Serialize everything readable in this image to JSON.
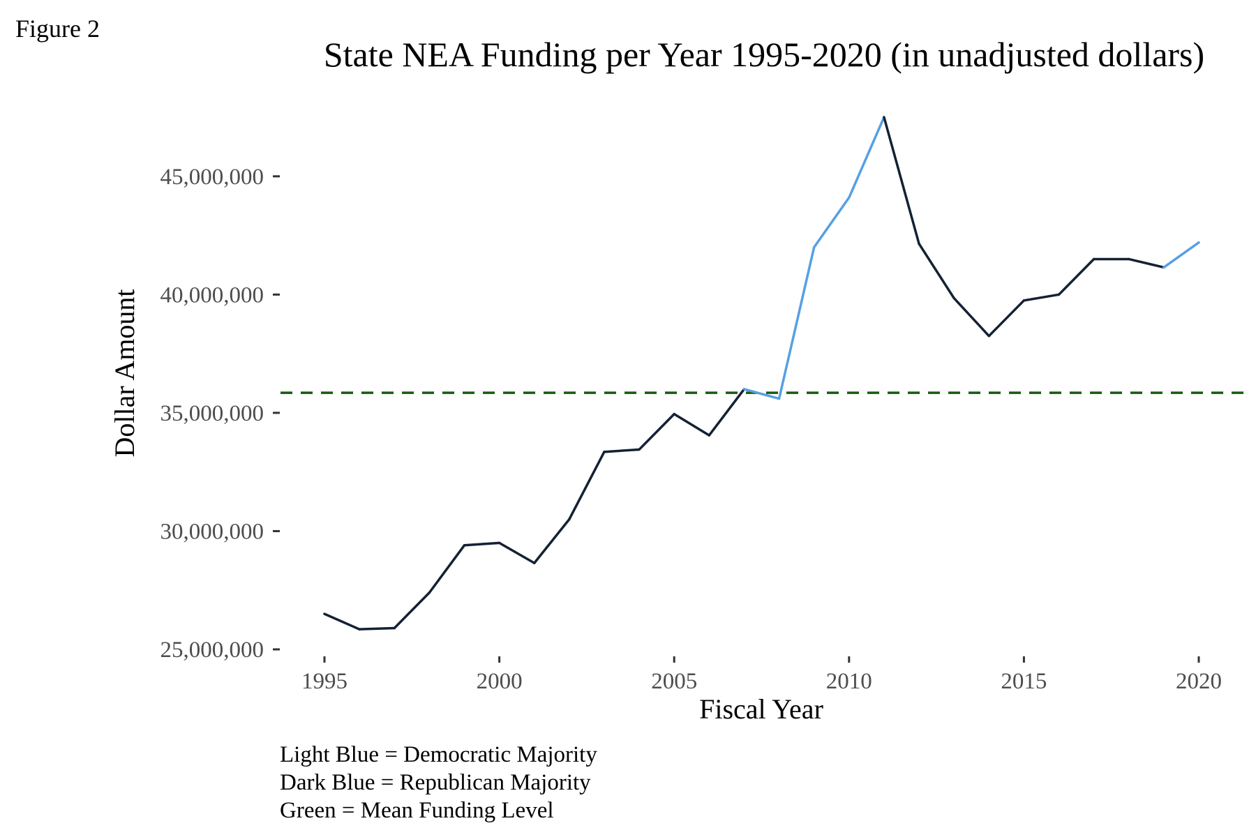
{
  "figure_label": "Figure 2",
  "caption": [
    "Light Blue = Democratic Majority",
    "Dark Blue = Republican Majority",
    "Green = Mean Funding Level"
  ],
  "colors": {
    "democratic": "#56a0e3",
    "republican": "#132133",
    "mean": "#1a5a12",
    "tick_text": "#4d4d4d"
  },
  "chart_data": {
    "type": "line",
    "title": "State NEA Funding per Year 1995-2020 (in unadjusted dollars)",
    "xlabel": "Fiscal Year",
    "ylabel": "Dollar Amount",
    "xlim": [
      1995,
      2020
    ],
    "ylim": [
      25000000,
      47500000
    ],
    "x_ticks": [
      1995,
      2000,
      2005,
      2010,
      2015,
      2020
    ],
    "x_tick_labels": [
      "1995",
      "2000",
      "2005",
      "2010",
      "2015",
      "2020"
    ],
    "y_ticks": [
      25000000,
      30000000,
      35000000,
      40000000,
      45000000
    ],
    "y_tick_labels": [
      "25,000,000",
      "30,000,000",
      "35,000,000",
      "40,000,000",
      "45,000,000"
    ],
    "grid": false,
    "legend": "none",
    "x": [
      1995,
      1996,
      1997,
      1998,
      1999,
      2000,
      2001,
      2002,
      2003,
      2004,
      2005,
      2006,
      2007,
      2008,
      2009,
      2010,
      2011,
      2012,
      2013,
      2014,
      2015,
      2016,
      2017,
      2018,
      2019,
      2020
    ],
    "y": [
      26500000,
      25850000,
      25900000,
      27400000,
      29400000,
      29500000,
      28650000,
      30500000,
      33350000,
      33450000,
      34950000,
      34050000,
      36000000,
      35600000,
      42000000,
      44100000,
      47500000,
      42150000,
      39850000,
      38250000,
      39750000,
      40000000,
      41500000,
      41500000,
      41150000,
      42200000
    ],
    "majority": [
      "R",
      "R",
      "R",
      "R",
      "R",
      "R",
      "R",
      "R",
      "R",
      "R",
      "R",
      "R",
      "D",
      "D",
      "D",
      "D",
      "R",
      "R",
      "R",
      "R",
      "R",
      "R",
      "R",
      "R",
      "D",
      "D"
    ],
    "mean_level": 35850000
  }
}
